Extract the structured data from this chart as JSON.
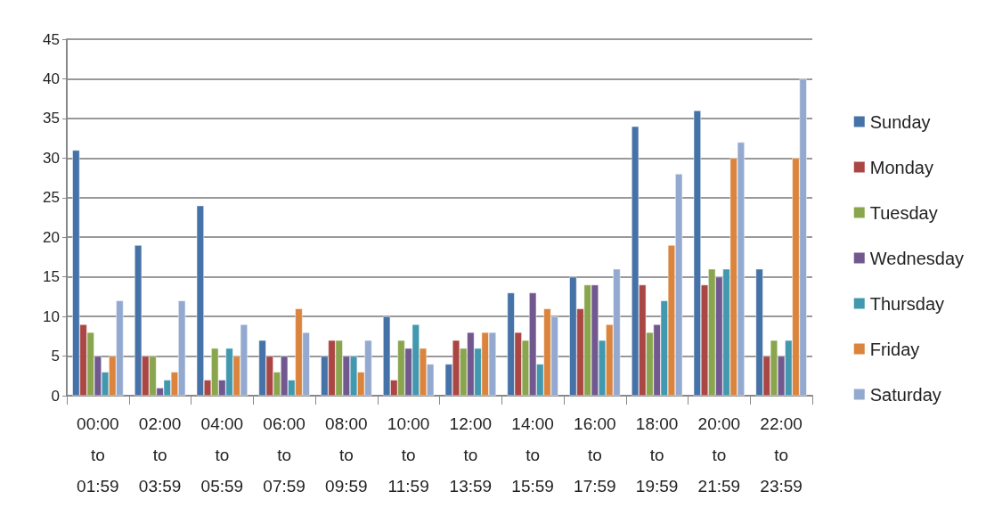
{
  "chart_data": {
    "type": "bar",
    "categories": [
      "00:00\nto\n01:59",
      "02:00\nto\n03:59",
      "04:00\nto\n05:59",
      "06:00\nto\n07:59",
      "08:00\nto\n09:59",
      "10:00\nto\n11:59",
      "12:00\nto\n13:59",
      "14:00\nto\n15:59",
      "16:00\nto\n17:59",
      "18:00\nto\n19:59",
      "20:00\nto\n21:59",
      "22:00\nto\n23:59"
    ],
    "series": [
      {
        "name": "Sunday",
        "color": "#4572a7",
        "values": [
          31,
          19,
          24,
          7,
          5,
          10,
          4,
          13,
          15,
          34,
          36,
          16
        ]
      },
      {
        "name": "Monday",
        "color": "#aa4643",
        "values": [
          9,
          5,
          2,
          5,
          7,
          2,
          7,
          8,
          11,
          14,
          14,
          5
        ]
      },
      {
        "name": "Tuesday",
        "color": "#89a54e",
        "values": [
          8,
          5,
          6,
          3,
          7,
          7,
          6,
          7,
          14,
          8,
          16,
          7
        ]
      },
      {
        "name": "Wednesday",
        "color": "#71588f",
        "values": [
          5,
          1,
          2,
          5,
          5,
          6,
          8,
          13,
          14,
          9,
          15,
          5
        ]
      },
      {
        "name": "Thursday",
        "color": "#4198af",
        "values": [
          3,
          2,
          6,
          2,
          5,
          9,
          6,
          4,
          7,
          12,
          16,
          7
        ]
      },
      {
        "name": "Friday",
        "color": "#db843d",
        "values": [
          5,
          3,
          5,
          11,
          3,
          6,
          8,
          11,
          9,
          19,
          30,
          30
        ]
      },
      {
        "name": "Saturday",
        "color": "#93a9cf",
        "values": [
          12,
          12,
          9,
          8,
          7,
          4,
          8,
          10,
          16,
          28,
          32,
          40
        ]
      }
    ],
    "ylim": [
      0,
      45
    ],
    "yticks": [
      0,
      5,
      10,
      15,
      20,
      25,
      30,
      35,
      40,
      45
    ],
    "grid": "y",
    "legend": "right"
  }
}
